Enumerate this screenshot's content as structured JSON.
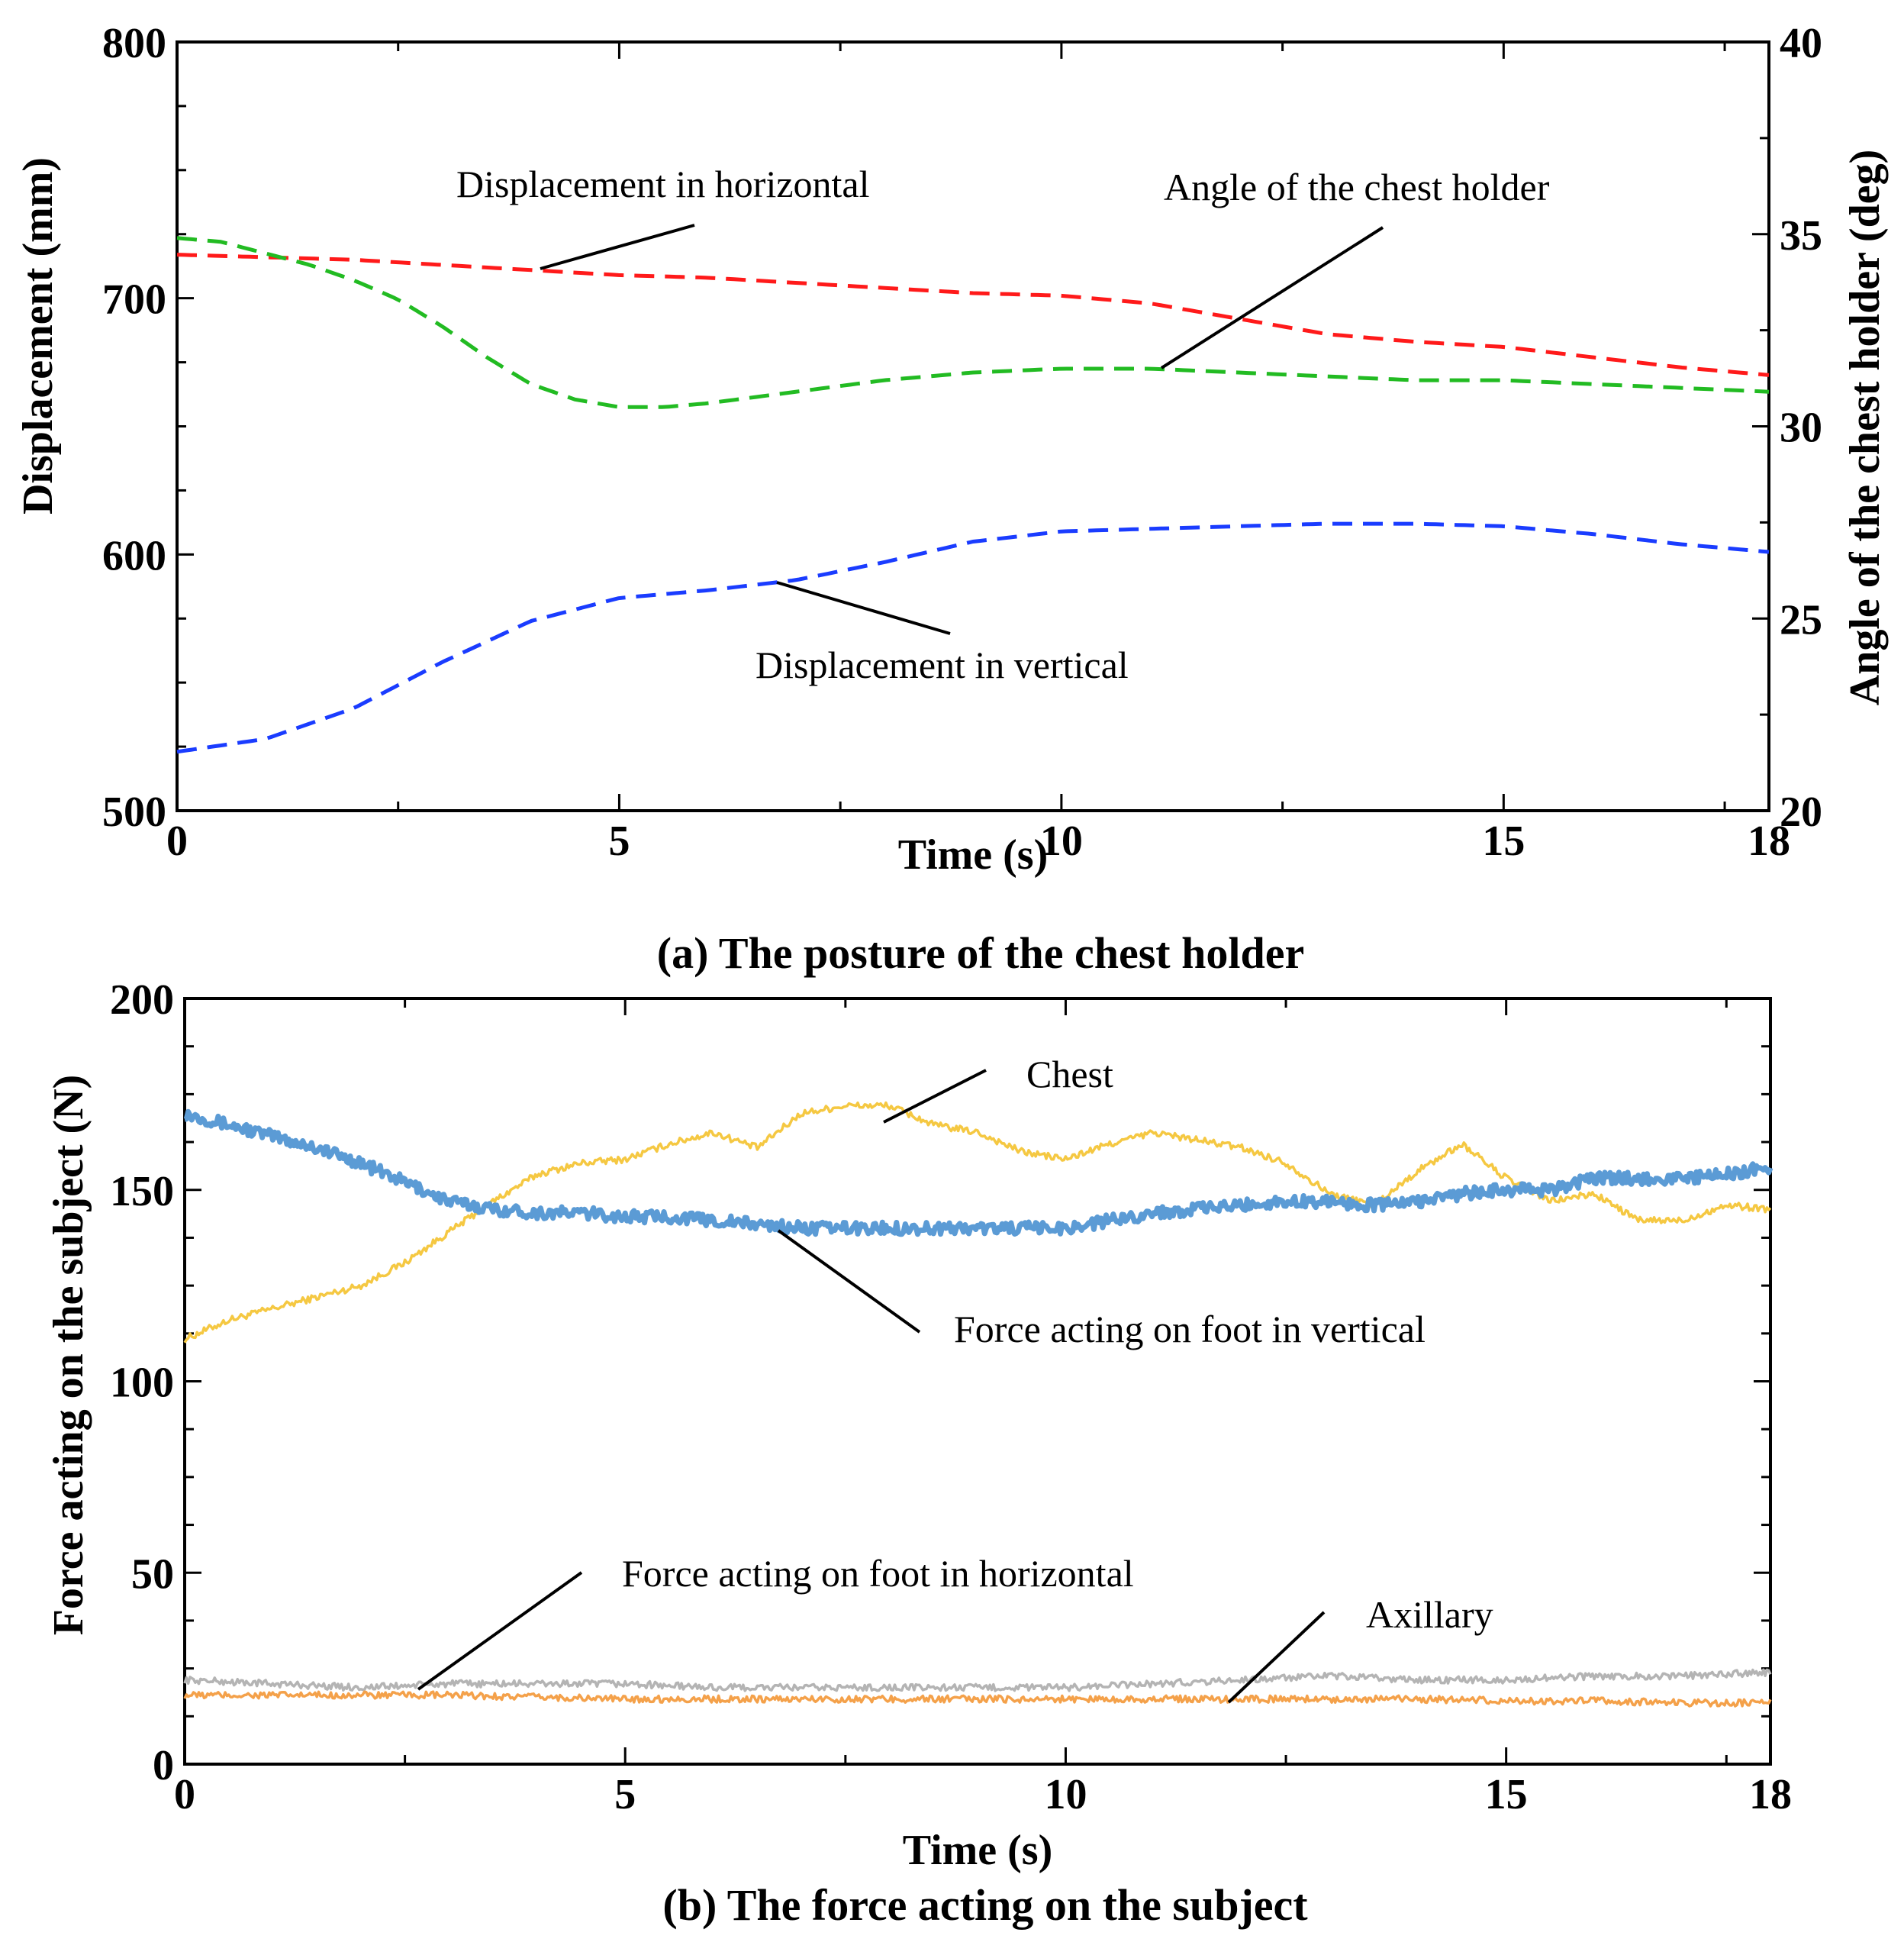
{
  "chart_data": [
    {
      "id": "a",
      "type": "line",
      "caption": "(a) The posture of the chest holder",
      "xlabel": "Time (s)",
      "ylabel": "Displacement (mm)",
      "y2label": "Angle of the chest holder (deg)",
      "xlim": [
        0,
        18
      ],
      "ylim": [
        500,
        800
      ],
      "y2lim": [
        20,
        40
      ],
      "xticks": [
        0,
        5,
        10,
        15,
        18
      ],
      "yticks": [
        500,
        600,
        700,
        800
      ],
      "y2ticks": [
        20,
        25,
        30,
        35,
        40
      ],
      "series": [
        {
          "name": "Displacement in horizontal",
          "axis": "left",
          "color": "#ff1a1a",
          "dashed": true,
          "x": [
            0,
            1,
            2,
            3,
            4,
            5,
            6,
            7,
            8,
            9,
            10,
            11,
            12,
            13,
            14,
            15,
            16,
            17,
            18
          ],
          "y": [
            717,
            716,
            715,
            713,
            711,
            709,
            708,
            706,
            704,
            702,
            701,
            698,
            692,
            686,
            683,
            681,
            677,
            673,
            670
          ]
        },
        {
          "name": "Displacement in vertical",
          "axis": "left",
          "color": "#1a3cff",
          "dashed": true,
          "x": [
            0,
            1,
            2,
            3,
            4,
            5,
            6,
            7,
            8,
            9,
            10,
            11,
            12,
            13,
            14,
            15,
            16,
            17,
            18
          ],
          "y": [
            523,
            528,
            540,
            558,
            574,
            583,
            586,
            590,
            597,
            605,
            609,
            610,
            611,
            612,
            612,
            611,
            608,
            604,
            601
          ]
        },
        {
          "name": "Angle of the chest holder",
          "axis": "right",
          "color": "#22bb22",
          "dashed": true,
          "x": [
            0,
            0.5,
            1,
            1.5,
            2,
            2.5,
            3,
            3.5,
            4,
            4.5,
            5,
            5.5,
            6,
            7,
            8,
            9,
            10,
            11,
            12,
            13,
            14,
            15,
            16,
            17,
            18
          ],
          "y": [
            34.9,
            34.8,
            34.5,
            34.2,
            33.8,
            33.3,
            32.6,
            31.8,
            31.1,
            30.7,
            30.5,
            30.5,
            30.6,
            30.9,
            31.2,
            31.4,
            31.5,
            31.5,
            31.4,
            31.3,
            31.2,
            31.2,
            31.1,
            31.0,
            30.9
          ]
        }
      ],
      "annotations": [
        {
          "text": "Displacement in horizontal",
          "target": "Displacement in horizontal"
        },
        {
          "text": "Angle of the chest holder",
          "target": "Angle of the chest holder"
        },
        {
          "text": "Displacement in vertical",
          "target": "Displacement in vertical"
        }
      ]
    },
    {
      "id": "b",
      "type": "line",
      "caption": "(b) The force acting on the subject",
      "xlabel": "Time (s)",
      "ylabel": "Force acting on the subject (N)",
      "xlim": [
        0,
        18
      ],
      "ylim": [
        0,
        200
      ],
      "xticks": [
        0,
        5,
        10,
        15,
        18
      ],
      "yticks": [
        0,
        50,
        100,
        150,
        200
      ],
      "series": [
        {
          "name": "Chest",
          "color": "#f5c842",
          "x": [
            0,
            0.5,
            1,
            1.5,
            2,
            2.5,
            3,
            3.5,
            4,
            4.5,
            5,
            5.5,
            6,
            6.5,
            7,
            7.5,
            8,
            8.5,
            9,
            9.5,
            10,
            10.5,
            11,
            11.5,
            12,
            12.5,
            13,
            13.5,
            14,
            14.5,
            15,
            15.5,
            16,
            16.5,
            17,
            17.5,
            18
          ],
          "y": [
            111,
            116,
            119,
            122,
            125,
            131,
            139,
            147,
            154,
            157,
            158,
            162,
            165,
            161,
            170,
            172,
            172,
            167,
            165,
            160,
            158,
            162,
            165,
            163,
            161,
            157,
            149,
            146,
            155,
            162,
            153,
            147,
            149,
            142,
            142,
            146,
            145
          ]
        },
        {
          "name": "Force acting on foot in vertical",
          "color": "#5b9bd5",
          "x": [
            0,
            0.5,
            1,
            1.5,
            2,
            2.5,
            3,
            3.5,
            4,
            4.5,
            5,
            5.5,
            6,
            6.5,
            7,
            7.5,
            8,
            8.5,
            9,
            9.5,
            10,
            10.5,
            11,
            11.5,
            12,
            12.5,
            13,
            13.5,
            14,
            14.5,
            15,
            15.5,
            16,
            16.5,
            17,
            17.5,
            18
          ],
          "y": [
            170,
            167,
            164,
            161,
            157,
            152,
            147,
            145,
            144,
            144,
            143,
            143,
            142,
            141,
            140,
            140,
            140,
            140,
            140,
            140,
            140,
            142,
            144,
            145,
            146,
            147,
            147,
            146,
            147,
            149,
            150,
            150,
            153,
            153,
            153,
            154,
            156
          ]
        },
        {
          "name": "Force acting on foot in horizontal",
          "color": "#b4b4b4",
          "x": [
            0,
            1,
            2,
            3,
            4,
            5,
            6,
            7,
            8,
            9,
            10,
            11,
            12,
            13,
            14,
            15,
            16,
            17,
            18
          ],
          "y": [
            22,
            21,
            20,
            21,
            21,
            21,
            20,
            20,
            20,
            20,
            20,
            21,
            22,
            23,
            22,
            22,
            23,
            23,
            24
          ]
        },
        {
          "name": "Axillary",
          "color": "#f4a14a",
          "x": [
            0,
            1,
            2,
            3,
            4,
            5,
            6,
            7,
            8,
            9,
            10,
            11,
            12,
            13,
            14,
            15,
            16,
            17,
            18
          ],
          "y": [
            18,
            18,
            18,
            18,
            17.5,
            17,
            17,
            17,
            17,
            17,
            17,
            17,
            17,
            17,
            17,
            16.5,
            16.5,
            16,
            16
          ]
        }
      ],
      "annotations": [
        {
          "text": "Chest",
          "target": "Chest"
        },
        {
          "text": "Force acting on foot in vertical",
          "target": "Force acting on foot in vertical"
        },
        {
          "text": "Force acting on foot in horizontal",
          "target": "Force acting on foot in horizontal"
        },
        {
          "text": "Axillary",
          "target": "Axillary"
        }
      ]
    }
  ]
}
